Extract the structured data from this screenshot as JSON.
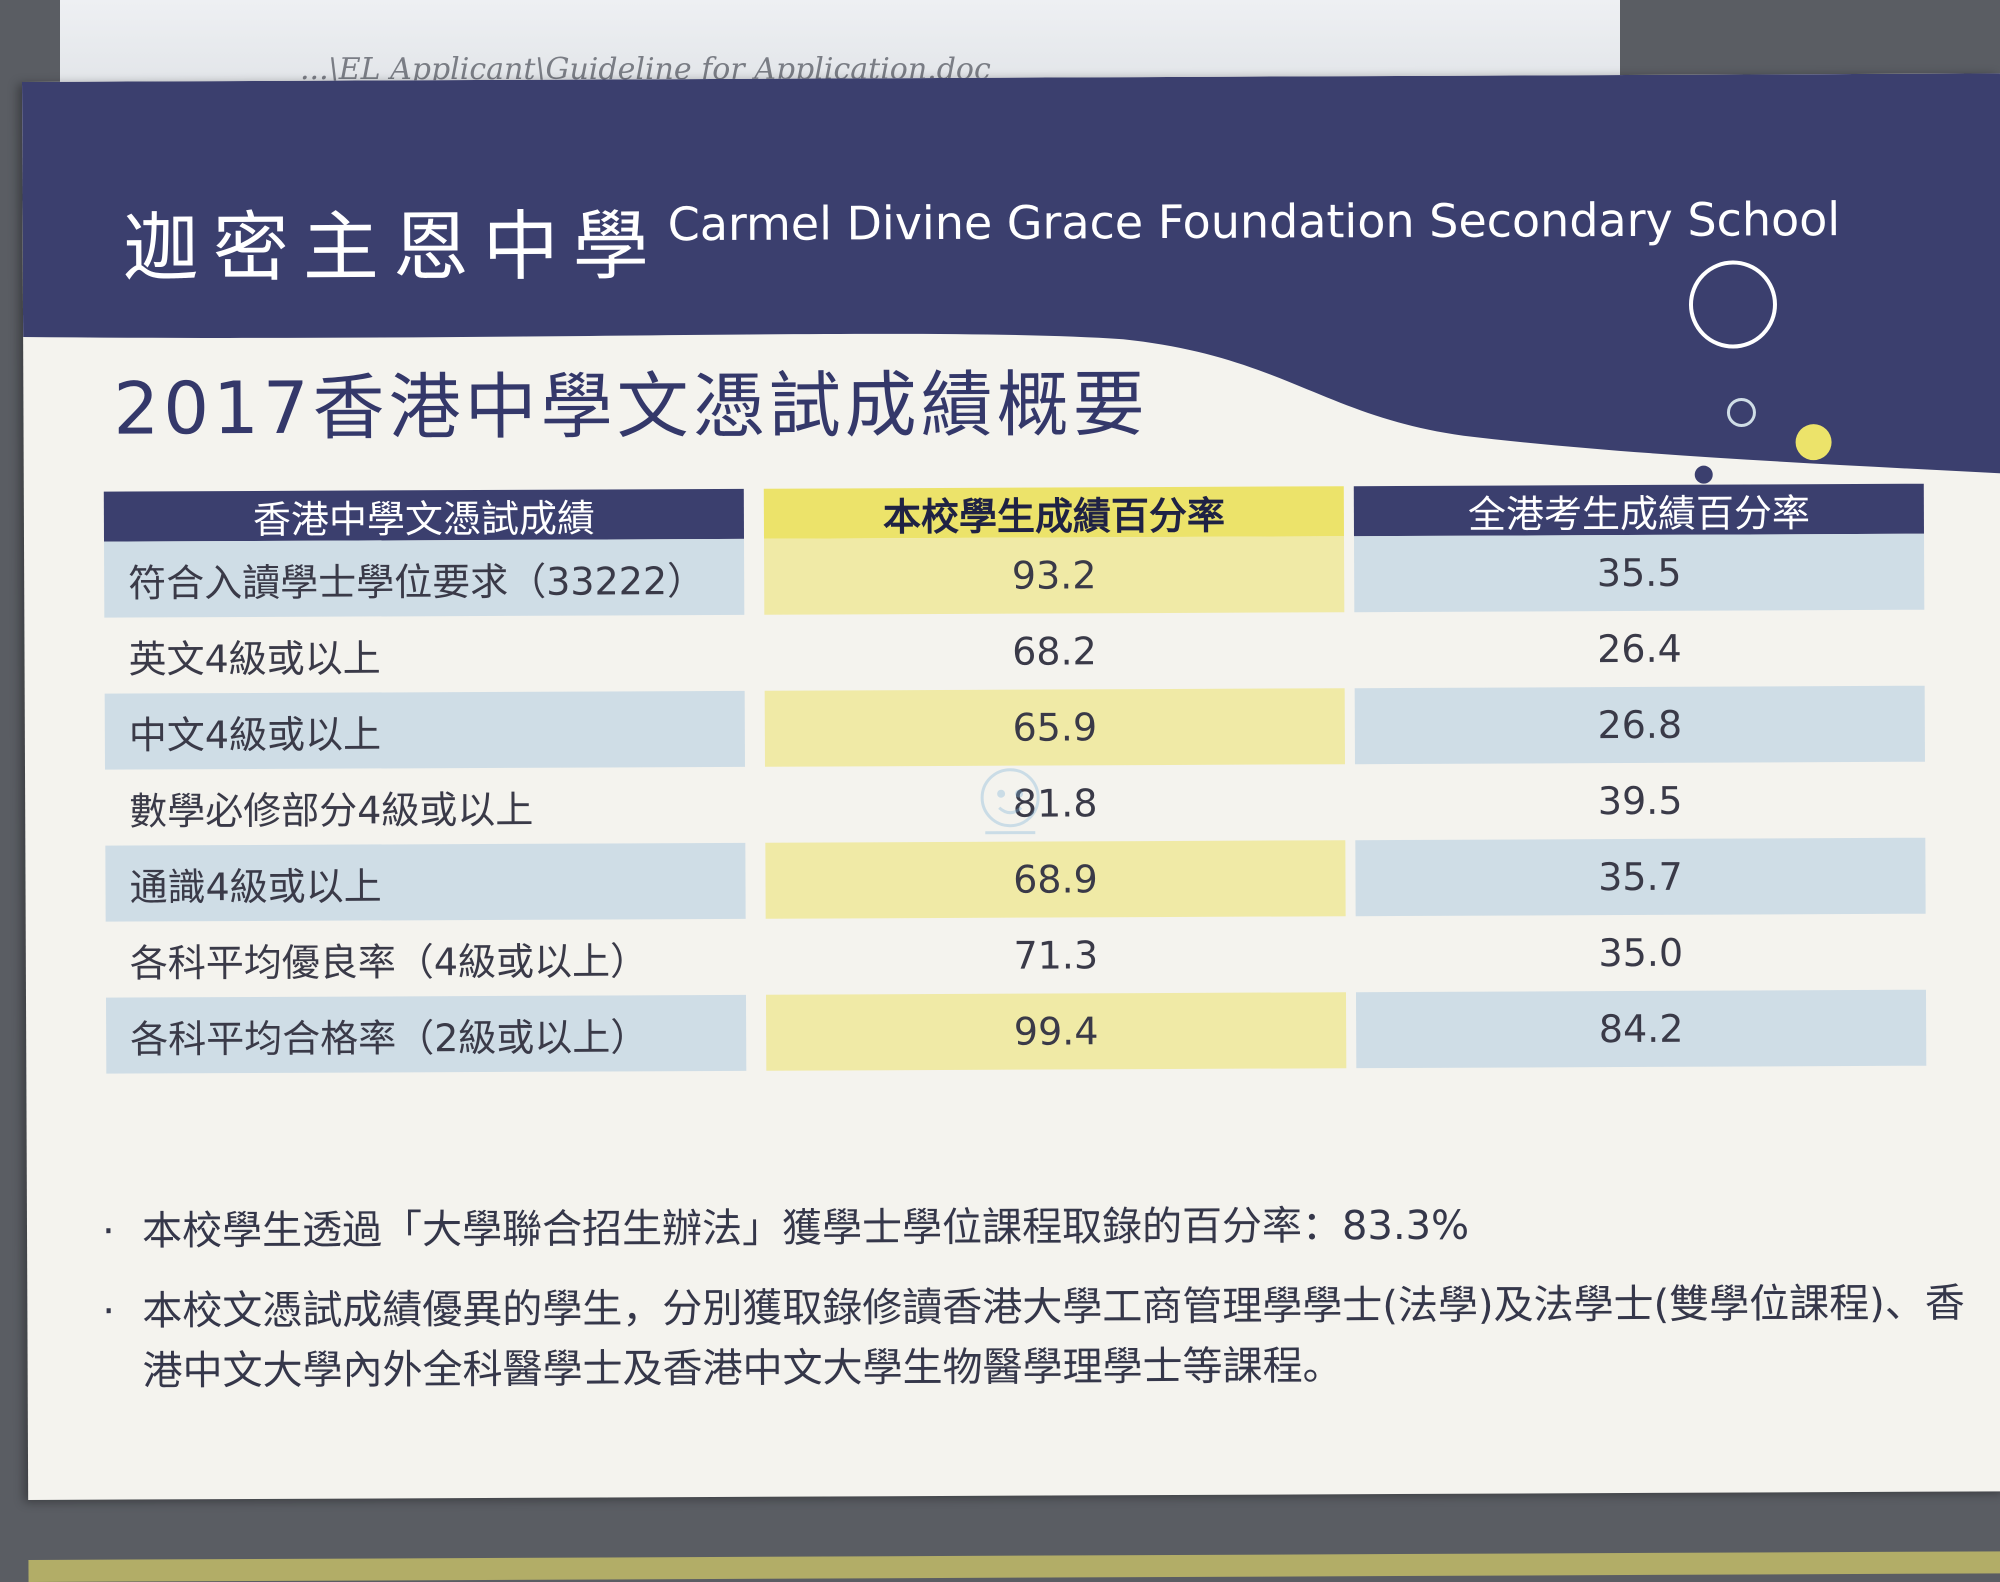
{
  "background_paper": {
    "path_text": "...\\EL Applicant\\Guideline for Application.doc"
  },
  "header": {
    "school_name_zh": "迦密主恩中學",
    "school_name_en": "Carmel Divine Grace Foundation Secondary School"
  },
  "report": {
    "title": "2017香港中學文憑試成績概要"
  },
  "table": {
    "headers": [
      "香港中學文憑試成績",
      "本校學生成績百分率",
      "全港考生成績百分率"
    ],
    "rows": [
      {
        "label": "符合入讀學士學位要求（33222）",
        "school": "93.2",
        "hk": "35.5"
      },
      {
        "label": "英文4級或以上",
        "school": "68.2",
        "hk": "26.4"
      },
      {
        "label": "中文4級或以上",
        "school": "65.9",
        "hk": "26.8"
      },
      {
        "label": "數學必修部分4級或以上",
        "school": "81.8",
        "hk": "39.5"
      },
      {
        "label": "通識4級或以上",
        "school": "68.9",
        "hk": "35.7"
      },
      {
        "label": "各科平均優良率（4級或以上）",
        "school": "71.3",
        "hk": "35.0"
      },
      {
        "label": "各科平均合格率（2級或以上）",
        "school": "99.4",
        "hk": "84.2"
      }
    ]
  },
  "notes": {
    "bullet": "·",
    "items": [
      "本校學生透過「大學聯合招生辦法」獲學士學位課程取錄的百分率：83.3%",
      "本校文憑試成績優異的學生，分別獲取錄修讀香港大學工商管理學學士(法學)及法學士(雙學位課程)、香港中文大學內外全科醫學士及香港中文大學生物醫學理學士等課程。"
    ]
  },
  "colors": {
    "banner_navy": "#3b3f6e",
    "accent_yellow": "#ece36a",
    "row_blue": "#cfdde6",
    "row_yellow": "#f0eaa6"
  }
}
